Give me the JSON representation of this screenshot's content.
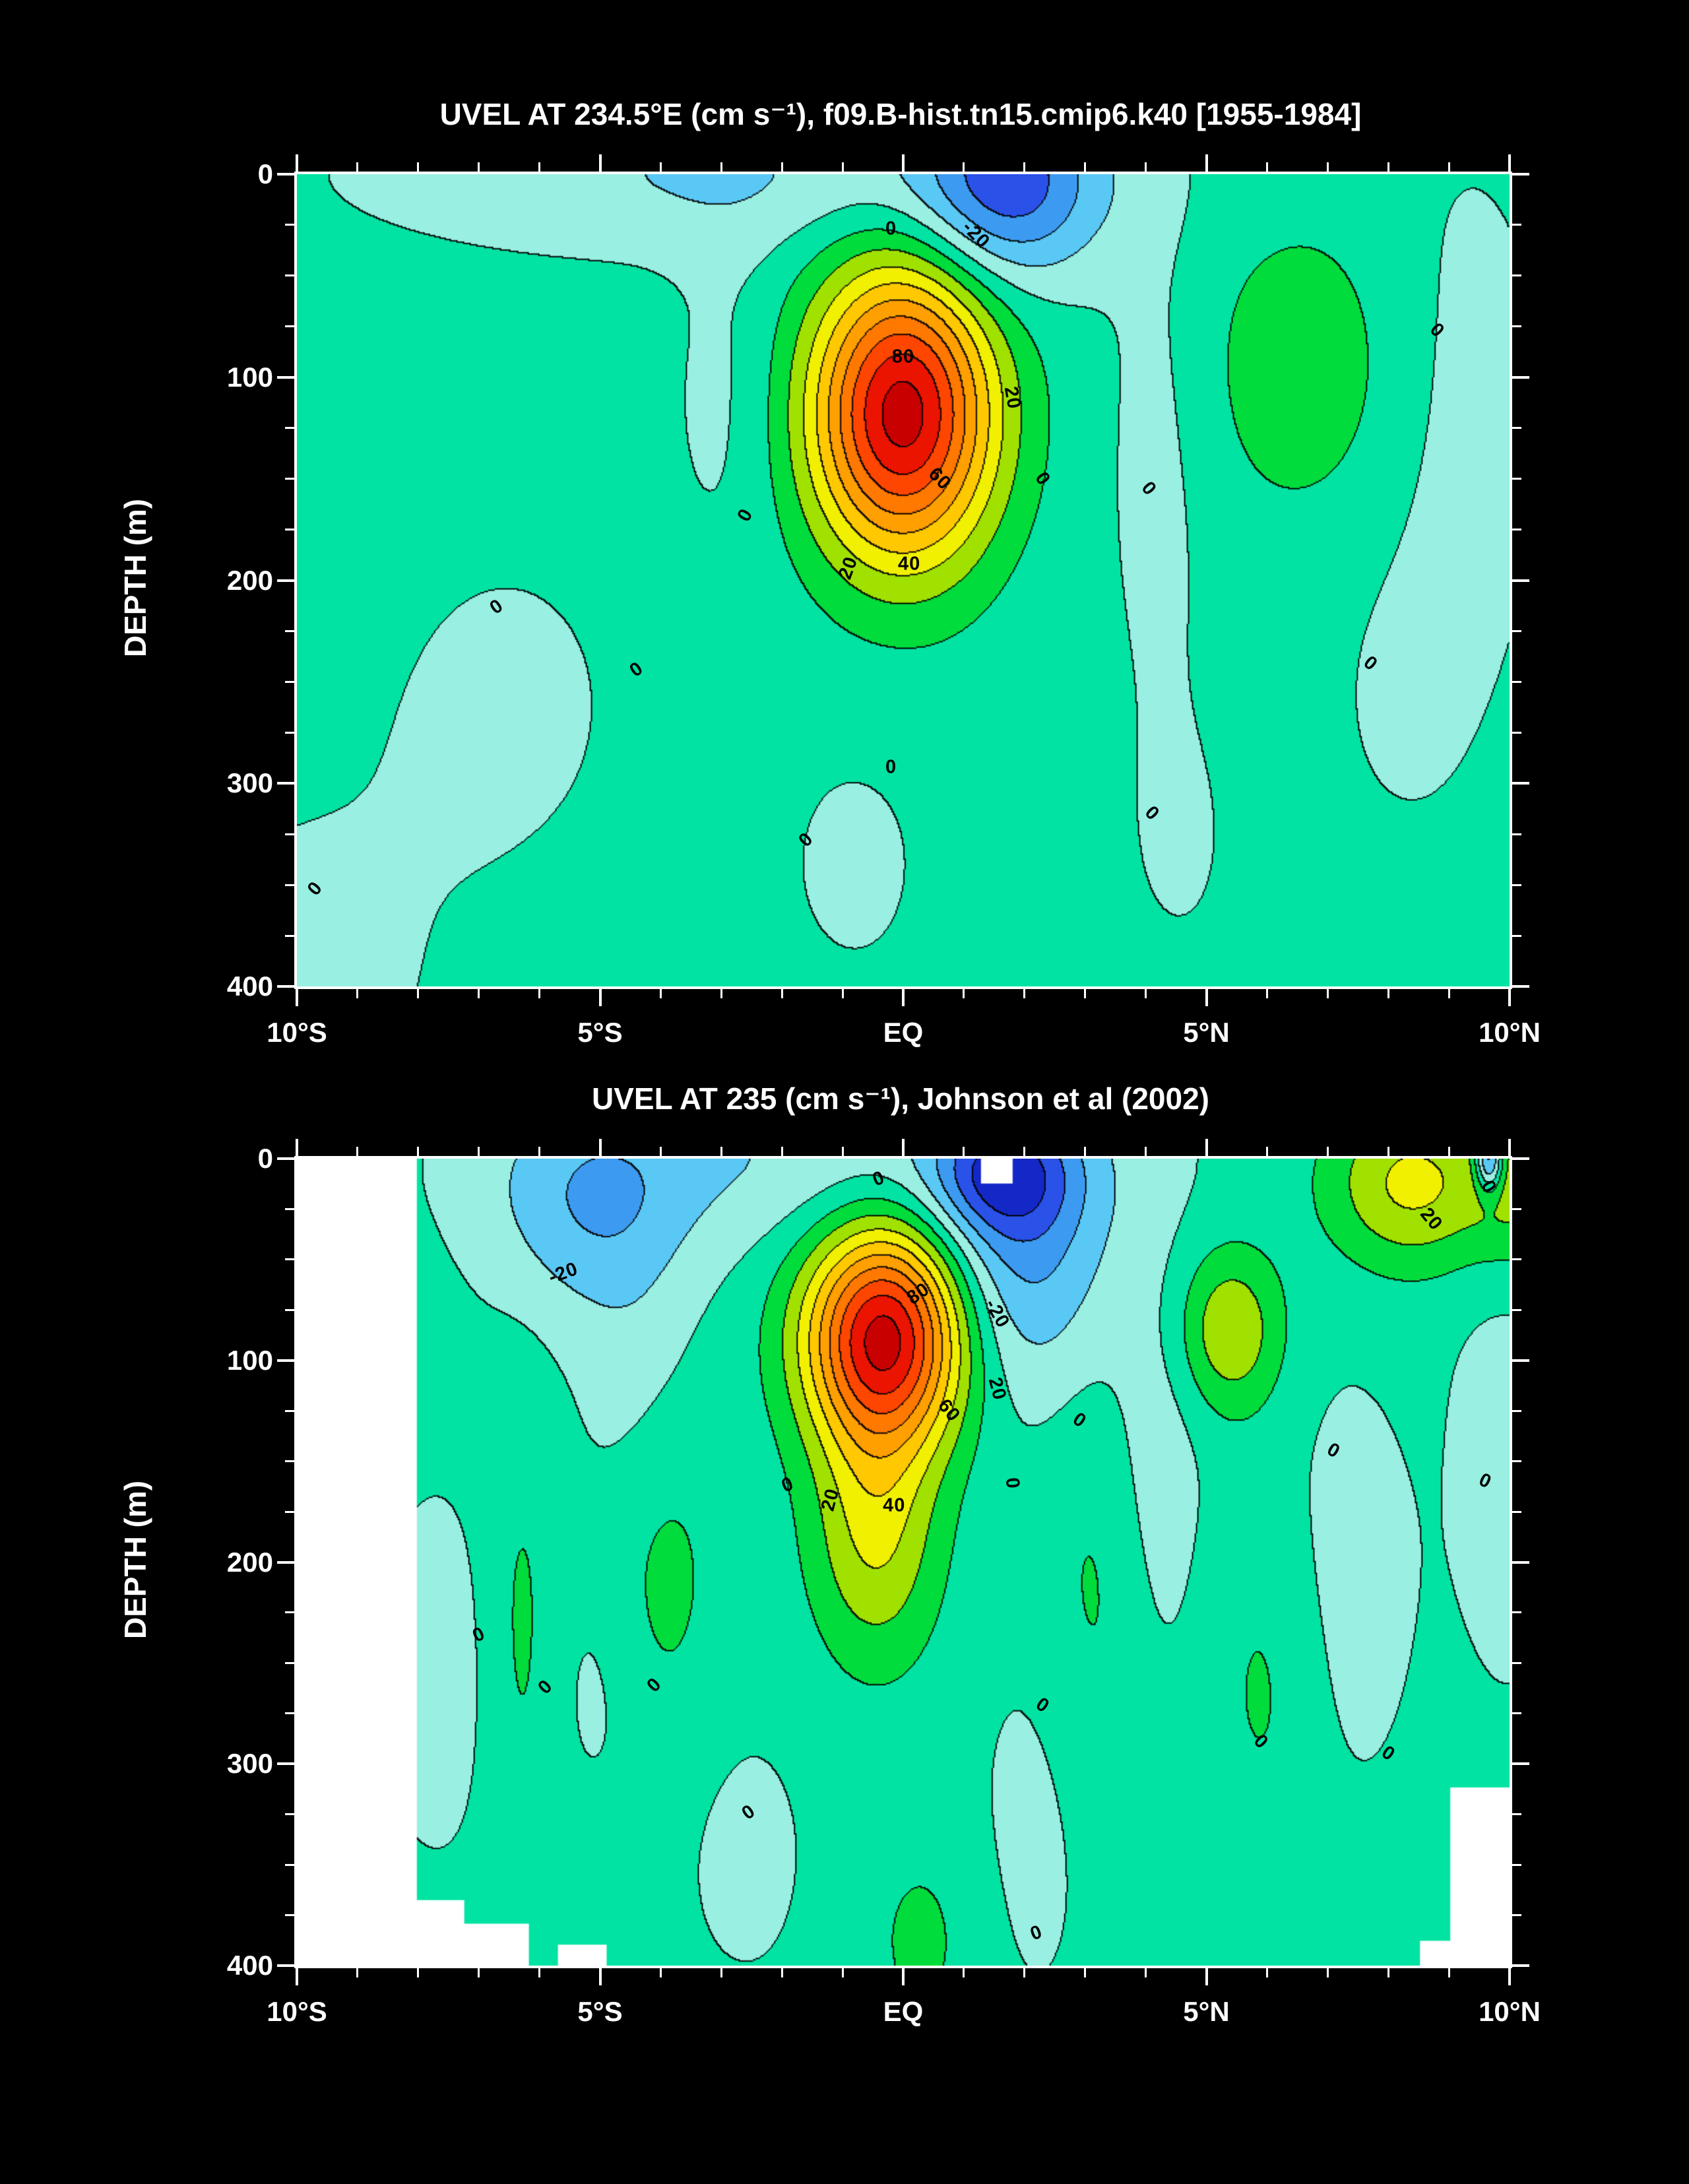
{
  "figure": {
    "background": "#000000",
    "text_color": "#FFFFFF",
    "contour_line_color": "#000000",
    "no_data_color": "#FFFFFF"
  },
  "palette": {
    "start_level": -40,
    "step": 10,
    "colors": [
      "#1428C8",
      "#2A52E8",
      "#3C9BF0",
      "#5AC8F5",
      "#98EFE2",
      "#00E3A2",
      "#00DC3C",
      "#A0E100",
      "#F0F000",
      "#FFC800",
      "#FFA000",
      "#FF7800",
      "#FF4600",
      "#EB1400",
      "#C80000",
      "#960000"
    ]
  },
  "chart_data": [
    {
      "type": "heatmap",
      "subtype": "filled_contour_section",
      "title": "UVEL AT 234.5°E (cm s⁻¹), f09.B-hist.tn15.cmip6.k40 [1955-1984]",
      "ylabel": "DEPTH (m)",
      "units": "cm s-1",
      "x_range": [
        -10,
        10
      ],
      "y_range": [
        0,
        400
      ],
      "y_inverted": true,
      "contour_interval": 10,
      "labeled_contours": [
        -20,
        0,
        20,
        40,
        60,
        80
      ],
      "x_ticks": [
        {
          "v": -10,
          "label": "10°S"
        },
        {
          "v": -5,
          "label": "5°S"
        },
        {
          "v": 0,
          "label": "EQ"
        },
        {
          "v": 5,
          "label": "5°N"
        },
        {
          "v": 10,
          "label": "10°N"
        }
      ],
      "y_ticks": [
        {
          "v": 0,
          "label": "0"
        },
        {
          "v": 100,
          "label": "100"
        },
        {
          "v": 200,
          "label": "200"
        },
        {
          "v": 300,
          "label": "300"
        },
        {
          "v": 400,
          "label": "400"
        }
      ],
      "x_minor_step": 1,
      "y_minor_step": 25,
      "features": {
        "eucc_max_cm_s": 95,
        "euc_core_lat": 0,
        "euc_core_depth_m": 115,
        "surface_min_cm_s": -36,
        "surface_min_lat": 1.7,
        "surface_min_depth_m": 5
      },
      "base_value": 3.5,
      "field_gaussians": [
        {
          "a": 91,
          "lat": 0,
          "z": 118,
          "slat": 1.5,
          "sz": 72
        },
        {
          "a": -36,
          "lat": 1.7,
          "z": 5,
          "slat": 1.5,
          "sz": 48
        },
        {
          "a": -14,
          "lat": -3,
          "z": 0,
          "slat": 5.5,
          "sz": 38
        },
        {
          "a": -6,
          "lat": -2.9,
          "z": 110,
          "slat": 1,
          "sz": 85
        },
        {
          "a": 13,
          "lat": 6.6,
          "z": 95,
          "slat": 1.7,
          "sz": 75
        },
        {
          "a": -7,
          "lat": 4.2,
          "z": 130,
          "slat": 0.9,
          "sz": 130
        },
        {
          "a": -5,
          "lat": -6.5,
          "z": 260,
          "slat": 2.2,
          "sz": 90
        },
        {
          "a": -5,
          "lat": -10,
          "z": 400,
          "slat": 3,
          "sz": 120
        },
        {
          "a": -5,
          "lat": -0.8,
          "z": 340,
          "slat": 1.4,
          "sz": 70
        },
        {
          "a": -7,
          "lat": 9.3,
          "z": 120,
          "slat": 1.5,
          "sz": 140
        },
        {
          "a": -4,
          "lat": 8.2,
          "z": 260,
          "slat": 1.3,
          "sz": 80
        },
        {
          "a": -4,
          "lat": 4.6,
          "z": 330,
          "slat": 1.2,
          "sz": 80
        }
      ],
      "contour_labels": [
        {
          "t": "0",
          "lat": -0.2,
          "z": 27,
          "r": 0
        },
        {
          "t": "-20",
          "lat": 1.2,
          "z": 30,
          "r": 45
        },
        {
          "t": "80",
          "lat": 0,
          "z": 90,
          "r": 0
        },
        {
          "t": "20",
          "lat": 1.8,
          "z": 110,
          "r": 80
        },
        {
          "t": "60",
          "lat": 0.6,
          "z": 150,
          "r": 45
        },
        {
          "t": "40",
          "lat": 0.1,
          "z": 192,
          "r": 0
        },
        {
          "t": "20",
          "lat": -0.9,
          "z": 194,
          "r": -70
        },
        {
          "t": "0",
          "lat": -2.6,
          "z": 168,
          "r": -60
        },
        {
          "t": "0",
          "lat": 2.3,
          "z": 150,
          "r": 55
        },
        {
          "t": "0",
          "lat": 4.05,
          "z": 155,
          "r": 50
        },
        {
          "t": "0",
          "lat": 8.8,
          "z": 77,
          "r": 45
        },
        {
          "t": "0",
          "lat": -6.7,
          "z": 213,
          "r": -35
        },
        {
          "t": "0",
          "lat": -4.4,
          "z": 244,
          "r": -35
        },
        {
          "t": "0",
          "lat": 7.7,
          "z": 241,
          "r": 40
        },
        {
          "t": "0",
          "lat": -0.2,
          "z": 292,
          "r": 0
        },
        {
          "t": "0",
          "lat": -1.6,
          "z": 328,
          "r": -45
        },
        {
          "t": "0",
          "lat": 4.1,
          "z": 315,
          "r": 45
        },
        {
          "t": "0",
          "lat": -9.7,
          "z": 352,
          "r": -50
        }
      ],
      "mask_rects": []
    },
    {
      "type": "heatmap",
      "subtype": "filled_contour_section",
      "title": "UVEL AT 235 (cm s⁻¹), Johnson et al (2002)",
      "ylabel": "DEPTH (m)",
      "units": "cm s-1",
      "x_range": [
        -10,
        10
      ],
      "y_range": [
        0,
        400
      ],
      "y_inverted": true,
      "contour_interval": 10,
      "labeled_contours": [
        -20,
        0,
        20,
        40,
        60,
        80
      ],
      "x_ticks": [
        {
          "v": -10,
          "label": "10°S"
        },
        {
          "v": -5,
          "label": "5°S"
        },
        {
          "v": 0,
          "label": "EQ"
        },
        {
          "v": 5,
          "label": "5°N"
        },
        {
          "v": 10,
          "label": "10°N"
        }
      ],
      "y_ticks": [
        {
          "v": 0,
          "label": "0"
        },
        {
          "v": 100,
          "label": "100"
        },
        {
          "v": 200,
          "label": "200"
        },
        {
          "v": 300,
          "label": "300"
        },
        {
          "v": 400,
          "label": "400"
        }
      ],
      "x_minor_step": 1,
      "y_minor_step": 25,
      "features": {
        "eucc_max_cm_s": 95,
        "euc_core_lat": -0.3,
        "euc_core_depth_m": 88,
        "surface_min_cm_s": -50,
        "surface_min_lat": 1.6,
        "surface_min_depth_m": 8
      },
      "base_value": 3,
      "field_gaussians": [
        {
          "a": 90,
          "lat": -0.3,
          "z": 88,
          "slat": 1.3,
          "sz": 55
        },
        {
          "a": 28,
          "lat": -0.45,
          "z": 185,
          "slat": 1.05,
          "sz": 65
        },
        {
          "a": -26,
          "lat": 1.6,
          "z": 8,
          "slat": 1.1,
          "sz": 28
        },
        {
          "a": -26,
          "lat": 2,
          "z": 40,
          "slat": 1.4,
          "sz": 75
        },
        {
          "a": -13,
          "lat": -1.5,
          "z": 0,
          "slat": 4.8,
          "sz": 45
        },
        {
          "a": -18,
          "lat": -5.2,
          "z": 25,
          "slat": 1.6,
          "sz": 55
        },
        {
          "a": -8,
          "lat": -4.4,
          "z": 120,
          "slat": 1,
          "sz": 95
        },
        {
          "a": 30,
          "lat": 8.4,
          "z": 12,
          "slat": 1.4,
          "sz": 42
        },
        {
          "a": 20,
          "lat": 10.3,
          "z": 10,
          "slat": 0.9,
          "sz": 45
        },
        {
          "a": 26,
          "lat": 5.4,
          "z": 85,
          "slat": 0.85,
          "sz": 40
        },
        {
          "a": -45,
          "lat": 9.68,
          "z": 0,
          "slat": 0.22,
          "sz": 16
        },
        {
          "a": -9,
          "lat": 4.2,
          "z": 150,
          "slat": 0.8,
          "sz": 110
        },
        {
          "a": 12,
          "lat": -4,
          "z": 200,
          "slat": 0.95,
          "sz": 85
        },
        {
          "a": 9,
          "lat": -6.3,
          "z": 235,
          "slat": 0.55,
          "sz": 110
        },
        {
          "a": 9,
          "lat": 3.2,
          "z": 215,
          "slat": 0.9,
          "sz": 110
        },
        {
          "a": 9,
          "lat": 6,
          "z": 260,
          "slat": 0.95,
          "sz": 90
        },
        {
          "a": 9,
          "lat": 0.3,
          "z": 388,
          "slat": 0.95,
          "sz": 55
        },
        {
          "a": -7,
          "lat": 7.3,
          "z": 210,
          "slat": 1.2,
          "sz": 110
        },
        {
          "a": -7,
          "lat": 10,
          "z": 140,
          "slat": 1,
          "sz": 130
        },
        {
          "a": -6,
          "lat": 2.2,
          "z": 330,
          "slat": 1,
          "sz": 95
        },
        {
          "a": -5,
          "lat": -2.6,
          "z": 345,
          "slat": 1.2,
          "sz": 75
        },
        {
          "a": -7,
          "lat": -7.7,
          "z": 255,
          "slat": 1,
          "sz": 95
        },
        {
          "a": -5,
          "lat": -5,
          "z": 265,
          "slat": 0.8,
          "sz": 60
        }
      ],
      "contour_labels": [
        {
          "t": "0",
          "lat": -0.4,
          "z": 10,
          "r": -20
        },
        {
          "t": "0",
          "lat": 9.65,
          "z": 14,
          "r": 60
        },
        {
          "t": "20",
          "lat": 8.7,
          "z": 30,
          "r": 50
        },
        {
          "t": "-20",
          "lat": -5.6,
          "z": 57,
          "r": -20
        },
        {
          "t": "80",
          "lat": 0.25,
          "z": 67,
          "r": -35
        },
        {
          "t": "-20",
          "lat": 1.55,
          "z": 77,
          "r": 60
        },
        {
          "t": "20",
          "lat": 1.55,
          "z": 114,
          "r": 75
        },
        {
          "t": "60",
          "lat": 0.75,
          "z": 125,
          "r": 50
        },
        {
          "t": "0",
          "lat": 2.9,
          "z": 130,
          "r": 35
        },
        {
          "t": "0",
          "lat": 7.1,
          "z": 145,
          "r": 30
        },
        {
          "t": "0",
          "lat": 9.6,
          "z": 160,
          "r": 25
        },
        {
          "t": "0",
          "lat": -1.9,
          "z": 162,
          "r": -20
        },
        {
          "t": "20",
          "lat": -1.2,
          "z": 169,
          "r": -75
        },
        {
          "t": "40",
          "lat": -0.15,
          "z": 172,
          "r": 0
        },
        {
          "t": "0",
          "lat": 1.8,
          "z": 161,
          "r": 85
        },
        {
          "t": "0",
          "lat": -7,
          "z": 236,
          "r": -25
        },
        {
          "t": "0",
          "lat": -5.9,
          "z": 262,
          "r": -45
        },
        {
          "t": "0",
          "lat": -4.1,
          "z": 261,
          "r": -45
        },
        {
          "t": "0",
          "lat": 2.3,
          "z": 271,
          "r": 35
        },
        {
          "t": "0",
          "lat": 5.9,
          "z": 289,
          "r": 45
        },
        {
          "t": "0",
          "lat": 8,
          "z": 295,
          "r": 35
        },
        {
          "t": "0",
          "lat": -2.55,
          "z": 324,
          "r": -35
        },
        {
          "t": "0",
          "lat": 2.2,
          "z": 384,
          "r": -20
        }
      ],
      "mask_rects": [
        [
          -10,
          -8.05,
          0,
          400
        ],
        [
          -8.05,
          -7.25,
          368,
          400
        ],
        [
          -7.25,
          -6.2,
          380,
          400
        ],
        [
          -5.7,
          -4.9,
          390,
          400
        ],
        [
          9.05,
          10,
          312,
          400
        ],
        [
          8.55,
          9.05,
          388,
          400
        ],
        [
          1.3,
          1.8,
          0,
          12
        ]
      ]
    }
  ]
}
